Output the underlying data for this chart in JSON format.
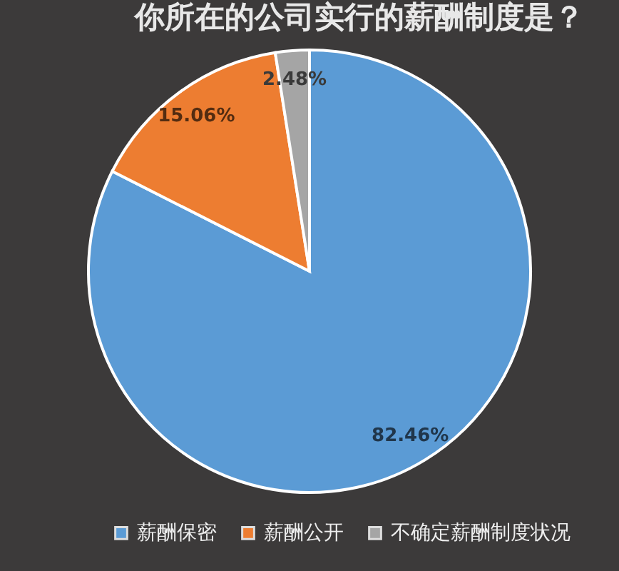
{
  "chart_data": {
    "type": "pie",
    "title": "你所在的公司实行的薪酬制度是？",
    "categories": [
      "薪酬保密",
      "薪酬公开",
      "不确定薪酬制度状况"
    ],
    "values": [
      82.46,
      15.06,
      2.48
    ],
    "value_labels": [
      "82.46%",
      "15.06%",
      "2.48%"
    ],
    "colors": [
      "#5b9bd5",
      "#ed7d31",
      "#a5a5a5"
    ],
    "legend": "bottom"
  }
}
